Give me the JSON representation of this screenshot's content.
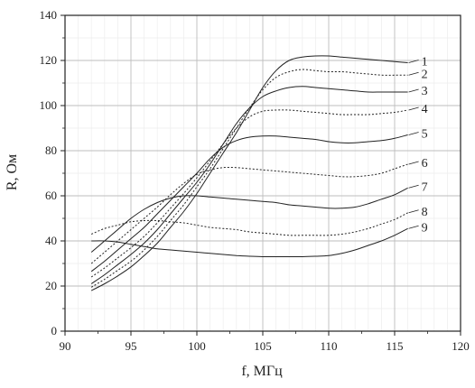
{
  "chart_data": {
    "type": "line",
    "title": "",
    "xlabel": "f, МГц",
    "ylabel": "R, Ом",
    "xlim": [
      90,
      120
    ],
    "ylim": [
      0,
      140
    ],
    "x_ticks": [
      90,
      95,
      100,
      105,
      110,
      115,
      120
    ],
    "y_ticks": [
      0,
      20,
      40,
      60,
      80,
      100,
      120,
      140
    ],
    "grid": true,
    "legend": "none (curves numbered at right end)",
    "series": [
      {
        "name": "1",
        "style": "solid",
        "x": [
          92,
          93,
          94,
          95,
          96,
          97,
          98,
          99,
          100,
          101,
          102,
          103,
          104,
          105,
          106,
          107,
          108,
          109,
          110,
          111,
          112,
          113,
          114,
          115,
          116
        ],
        "y": [
          18,
          21,
          24.5,
          28.5,
          33.5,
          39,
          46,
          53,
          61,
          70,
          79,
          88,
          98,
          108,
          115.5,
          120,
          121.5,
          122,
          122,
          121.5,
          121,
          120.5,
          120,
          119.5,
          119
        ]
      },
      {
        "name": "2",
        "style": "dotted",
        "x": [
          92,
          93,
          94,
          95,
          96,
          97,
          98,
          99,
          100,
          101,
          102,
          103,
          104,
          105,
          106,
          107,
          108,
          109,
          110,
          111,
          112,
          113,
          114,
          115,
          116
        ],
        "y": [
          19.5,
          23,
          27,
          31,
          36,
          42,
          49,
          56,
          64,
          72,
          81,
          90,
          99,
          107,
          112.5,
          115,
          116,
          115.5,
          115,
          115,
          114.5,
          114,
          113.5,
          113.5,
          113.5
        ]
      },
      {
        "name": "3",
        "style": "solid",
        "x": [
          92,
          93,
          94,
          95,
          96,
          97,
          98,
          99,
          100,
          101,
          102,
          103,
          104,
          105,
          106,
          107,
          108,
          109,
          110,
          111,
          112,
          113,
          114,
          115,
          116
        ],
        "y": [
          21,
          25,
          29.5,
          34,
          39,
          45,
          52,
          59,
          66,
          74,
          83,
          92,
          99,
          104,
          106.5,
          108,
          108.5,
          108,
          107.5,
          107,
          106.5,
          106,
          106,
          106,
          106
        ]
      },
      {
        "name": "4",
        "style": "dotted",
        "x": [
          92,
          93,
          94,
          95,
          96,
          97,
          98,
          99,
          100,
          101,
          102,
          103,
          104,
          105,
          106,
          107,
          108,
          109,
          110,
          111,
          112,
          113,
          114,
          115,
          116
        ],
        "y": [
          24,
          28,
          32.5,
          37,
          42,
          48,
          54.5,
          61,
          68,
          75.5,
          83,
          90,
          95,
          97.5,
          98,
          98,
          97.5,
          97,
          96.5,
          96,
          96,
          96,
          96.5,
          97,
          98
        ]
      },
      {
        "name": "5",
        "style": "solid",
        "x": [
          92,
          93,
          94,
          95,
          96,
          97,
          98,
          99,
          100,
          101,
          102,
          103,
          104,
          105,
          106,
          107,
          108,
          109,
          110,
          111,
          112,
          113,
          114,
          115,
          116
        ],
        "y": [
          26.5,
          31,
          36,
          41,
          46,
          52,
          58,
          64,
          70,
          76.5,
          81.5,
          84.5,
          86,
          86.5,
          86.5,
          86,
          85.5,
          85,
          84,
          83.5,
          83.5,
          84,
          84.5,
          85.5,
          87
        ]
      },
      {
        "name": "6",
        "style": "dotted",
        "x": [
          92,
          93,
          94,
          95,
          96,
          97,
          98,
          99,
          100,
          101,
          102,
          103,
          104,
          105,
          106,
          107,
          108,
          109,
          110,
          111,
          112,
          113,
          114,
          115,
          116
        ],
        "y": [
          30,
          35,
          40,
          45,
          50,
          55,
          60.5,
          65.5,
          69.5,
          71.5,
          72.5,
          72.5,
          72,
          71.5,
          71,
          70.5,
          70,
          69.5,
          69,
          68.5,
          68.5,
          69,
          70,
          72,
          74
        ]
      },
      {
        "name": "7",
        "style": "solid",
        "x": [
          92,
          93,
          94,
          95,
          96,
          97,
          98,
          99,
          100,
          101,
          102,
          103,
          104,
          105,
          106,
          107,
          108,
          109,
          110,
          111,
          112,
          113,
          114,
          115,
          116
        ],
        "y": [
          35,
          40,
          45,
          50,
          54,
          57,
          59,
          60,
          60,
          59.5,
          59,
          58.5,
          58,
          57.5,
          57,
          56,
          55.5,
          55,
          54.5,
          54.5,
          55,
          56.5,
          58.5,
          60.5,
          63.5
        ]
      },
      {
        "name": "8",
        "style": "dotted",
        "x": [
          92,
          93,
          94,
          95,
          96,
          97,
          98,
          99,
          100,
          101,
          102,
          103,
          104,
          105,
          106,
          107,
          108,
          109,
          110,
          111,
          112,
          113,
          114,
          115,
          116
        ],
        "y": [
          43,
          45.5,
          47,
          48.5,
          49,
          49,
          48.5,
          48,
          47,
          46,
          45.5,
          45,
          44,
          43.5,
          43,
          42.5,
          42.5,
          42.5,
          42.5,
          43,
          44,
          45.5,
          47.5,
          49.5,
          52.5
        ]
      },
      {
        "name": "9",
        "style": "solid",
        "x": [
          92,
          93,
          94,
          95,
          96,
          97,
          98,
          99,
          100,
          101,
          102,
          103,
          104,
          105,
          106,
          107,
          108,
          109,
          110,
          111,
          112,
          113,
          114,
          115,
          116
        ],
        "y": [
          40,
          40,
          39.5,
          38.5,
          37.5,
          36.5,
          36,
          35.5,
          35,
          34.5,
          34,
          33.5,
          33.2,
          33,
          33,
          33,
          33,
          33.2,
          33.5,
          34.5,
          36,
          38,
          40,
          42.5,
          45.5
        ]
      }
    ]
  }
}
